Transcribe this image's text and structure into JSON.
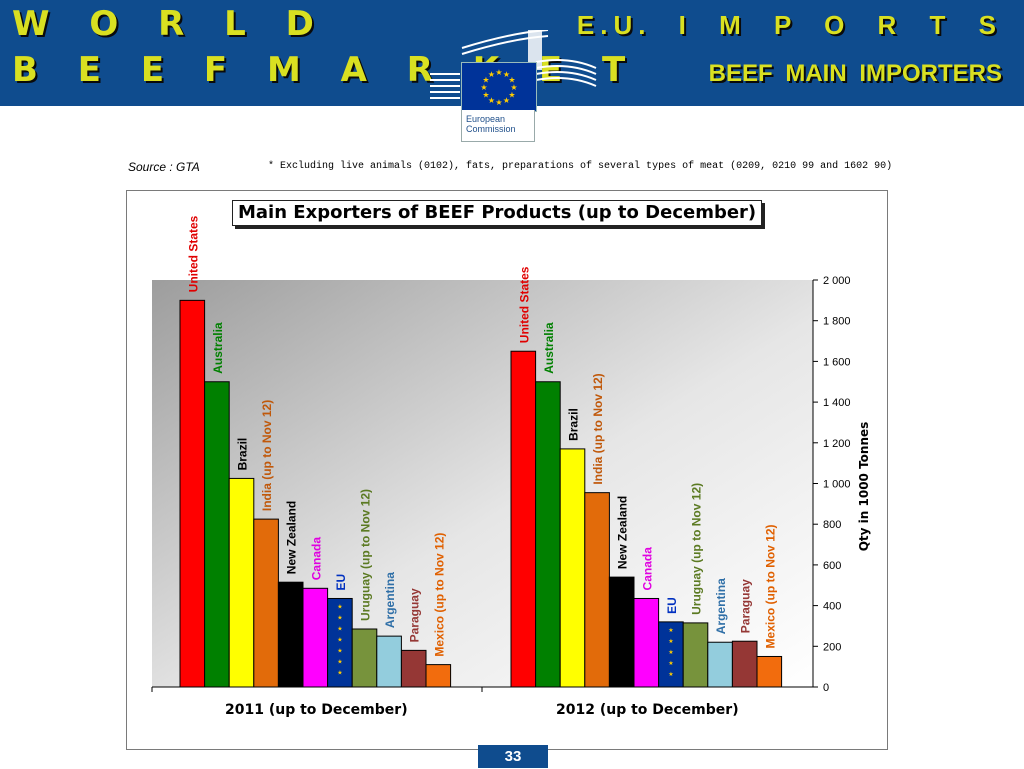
{
  "header": {
    "title_line1": "W O R L D",
    "title_line2": "B E E F   M A R K E T",
    "right_line1": "E.U.   I M P O R T S",
    "right_line2": "BEEF  MAIN  IMPORTERS",
    "logo_text": "European Commission",
    "background_color": "#0f4c8e",
    "title_color": "#d9e021"
  },
  "source": {
    "label": "Source : GTA",
    "footnote": "* Excluding live animals (0102), fats, preparations of several types of meat (0209, 0210 99 and 1602 90)"
  },
  "chart_data": {
    "type": "bar",
    "title": "Main Exporters of BEEF Products (up to December)",
    "xlabel": "",
    "ylabel": "Qty in  1000 Tonnes",
    "ylim": [
      0,
      2000
    ],
    "yticks": [
      0,
      200,
      400,
      600,
      800,
      1000,
      1200,
      1400,
      1600,
      1800,
      2000
    ],
    "ytick_labels": [
      "0",
      "200",
      "400",
      "600",
      "800",
      "1 000",
      "1 200",
      "1 400",
      "1 600",
      "1 800",
      "2 000"
    ],
    "axis_position": "right",
    "legend": "bar labels",
    "categories": [
      "2011 (up to December)",
      "2012 (up to December)"
    ],
    "series": [
      {
        "name": "United States",
        "color": "#ff0000",
        "label_color": "#e00000",
        "values": [
          1900,
          1650
        ]
      },
      {
        "name": "Australia",
        "color": "#008000",
        "label_color": "#008000",
        "values": [
          1500,
          1500
        ]
      },
      {
        "name": "Brazil",
        "color": "#ffff00",
        "label_color": "#000000",
        "values": [
          1025,
          1170
        ]
      },
      {
        "name": "India (up to Nov 12)",
        "color": "#e26b0a",
        "label_color": "#c0580a",
        "values": [
          825,
          955
        ]
      },
      {
        "name": "New Zealand",
        "color": "#000000",
        "label_color": "#000000",
        "values": [
          515,
          540
        ]
      },
      {
        "name": "Canada",
        "color": "#ff00ff",
        "label_color": "#e000e0",
        "values": [
          485,
          435
        ]
      },
      {
        "name": "EU",
        "color": "#003399",
        "label_color": "#0030c0",
        "values": [
          435,
          320
        ]
      },
      {
        "name": "Uruguay (up to Nov 12)",
        "color": "#77933c",
        "label_color": "#5b7a22",
        "values": [
          285,
          315
        ]
      },
      {
        "name": "Argentina",
        "color": "#93cddd",
        "label_color": "#2f6fa7",
        "values": [
          250,
          220
        ]
      },
      {
        "name": "Paraguay",
        "color": "#953735",
        "label_color": "#953735",
        "values": [
          180,
          225
        ]
      },
      {
        "name": "Mexico (up to Nov 12)",
        "color": "#f26c0d",
        "label_color": "#e06000",
        "values": [
          110,
          150
        ]
      }
    ]
  },
  "page": {
    "number": "33"
  }
}
